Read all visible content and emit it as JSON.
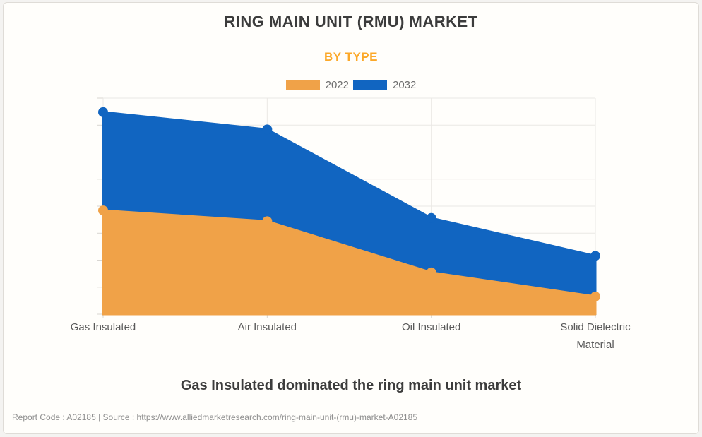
{
  "window": {
    "background": "#f4f3f1",
    "card_background": "#fffefb",
    "card_border": "#dfdcd7"
  },
  "header": {
    "title": "RING MAIN UNIT (RMU) MARKET",
    "title_color": "#3c3c3c",
    "subtitle": "BY TYPE",
    "subtitle_color": "#fca828"
  },
  "legend": {
    "items": [
      {
        "label": "2022",
        "color": "#f0a248"
      },
      {
        "label": "2032",
        "color": "#1165c1"
      }
    ],
    "text_color": "#6e6e6e"
  },
  "chart_data": {
    "type": "area",
    "title": "RING MAIN UNIT (RMU) MARKET",
    "subtitle": "BY TYPE",
    "categories": [
      "Gas Insulated",
      "Air Insulated",
      "Oil Insulated",
      "Solid Dielectric Material"
    ],
    "category_display": [
      [
        "Gas Insulated"
      ],
      [
        "Air Insulated"
      ],
      [
        "Oil Insulated"
      ],
      [
        "Solid Dielectric",
        "Material"
      ]
    ],
    "series": [
      {
        "name": "2022",
        "color": "#f0a248",
        "values": [
          48,
          43,
          19.3,
          8.2
        ]
      },
      {
        "name": "2032",
        "color": "#1165c1",
        "values": [
          93.5,
          85.5,
          44.5,
          27
        ]
      }
    ],
    "xlabel": "",
    "ylabel": "",
    "ylim": [
      0,
      100
    ],
    "y_axis_labels_visible": false,
    "grid": true,
    "grid_rows": 8,
    "legend_position": "top",
    "markers": true
  },
  "caption": {
    "text": "Gas Insulated dominated the ring main unit market",
    "color": "#3c3c3c"
  },
  "footer": {
    "text": "Report Code : A02185  |  Source : https://www.alliedmarketresearch.com/ring-main-unit-(rmu)-market-A02185",
    "color": "#8e8e8e"
  }
}
